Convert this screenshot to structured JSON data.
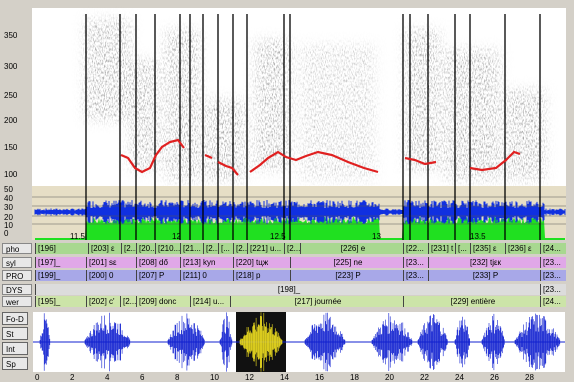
{
  "spectrogram": {
    "freq_labels": [
      "350",
      "300",
      "250",
      "200",
      "150",
      "100"
    ],
    "intensity_labels": [
      "50",
      "40",
      "30",
      "20",
      "10",
      "0"
    ],
    "time_labels": [
      "11.5",
      "12",
      "12.5",
      "13",
      "13.5"
    ]
  },
  "tiers": [
    {
      "name": "pho",
      "intervals": [
        "[196]",
        "[203] ε",
        "[2...",
        "[20...",
        "[210...",
        "[21...",
        "[2...",
        "[...",
        "[2...",
        "[221] u...",
        "[2...",
        "[226] e",
        "[22...",
        "[231] t",
        "[...",
        "[235] ε",
        "[236] ε",
        "[24..."
      ]
    },
    {
      "name": "syl",
      "intervals": [
        "[197]_",
        "[201] sε",
        "[208] dő",
        "[213] kyn",
        "[220] tцж",
        "[225] ne",
        "[23...",
        "[232] tjεк",
        "[23..."
      ]
    },
    {
      "name": "PRO",
      "intervals": [
        "[199]_",
        "[200] 0",
        "[207] P",
        "[211] 0",
        "[218] p",
        "[223] P",
        "[23...",
        "[233] P",
        "[23..."
      ]
    },
    {
      "name": "DYS",
      "intervals": [
        "[198]_",
        "[23..."
      ]
    },
    {
      "name": "wer",
      "intervals": [
        "[195]_",
        "[202] c'",
        "[2...",
        "[209] donc",
        "[214] u...",
        "[217] journée",
        "[229] entière",
        "[24..."
      ]
    }
  ],
  "waveform": {
    "buttons": [
      "Fo-D",
      "St",
      "Int",
      "Sp"
    ],
    "time_labels": [
      "0",
      "2",
      "4",
      "6",
      "8",
      "10",
      "12",
      "14",
      "16",
      "18",
      "20",
      "22",
      "24",
      "26",
      "28"
    ]
  }
}
